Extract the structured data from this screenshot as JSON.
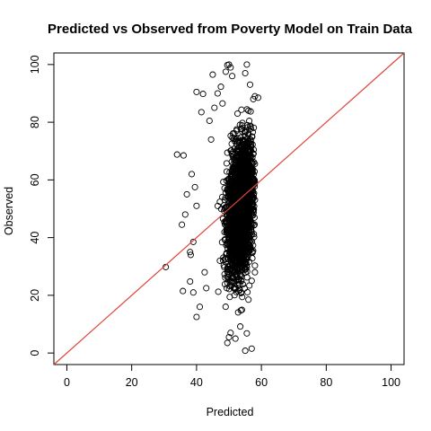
{
  "chart_data": {
    "type": "scatter",
    "title": "Predicted vs Observed from Poverty Model on Train Data",
    "xlabel": "Predicted",
    "ylabel": "Observed",
    "xlim": [
      -4,
      104
    ],
    "ylim": [
      -4,
      104
    ],
    "xticks": [
      0,
      20,
      40,
      60,
      80,
      100
    ],
    "yticks": [
      0,
      20,
      40,
      60,
      80,
      100
    ],
    "xtick_labels": [
      "0",
      "20",
      "40",
      "60",
      "80",
      "100"
    ],
    "ytick_labels": [
      "0",
      "20",
      "40",
      "60",
      "80",
      "100"
    ],
    "grid": false,
    "point_color": "#000000",
    "reference_line": {
      "type": "y=x",
      "from": [
        -4,
        -4
      ],
      "to": [
        104,
        104
      ],
      "color": "#e0443a"
    },
    "series": [
      {
        "marker": "open-circle",
        "n_points_approx": 3000,
        "cloud": {
          "x_range": [
            44,
            58
          ],
          "x_center": 53.5,
          "y_range": [
            14,
            86
          ],
          "y_center": 50
        },
        "points": [
          [
            30.5,
            29.8
          ],
          [
            34.0,
            68.8
          ],
          [
            35.5,
            44.5
          ],
          [
            35.8,
            21.5
          ],
          [
            36.0,
            68.5
          ],
          [
            36.5,
            48.0
          ],
          [
            37.0,
            55.0
          ],
          [
            38.0,
            24.8
          ],
          [
            38.0,
            35.0
          ],
          [
            38.2,
            34.0
          ],
          [
            38.5,
            62.0
          ],
          [
            39.0,
            21.0
          ],
          [
            39.0,
            38.5
          ],
          [
            39.5,
            57.5
          ],
          [
            40.0,
            12.5
          ],
          [
            40.0,
            51.0
          ],
          [
            40.0,
            90.5
          ],
          [
            41.0,
            16.0
          ],
          [
            41.5,
            83.5
          ],
          [
            42.0,
            89.8
          ],
          [
            42.5,
            28.0
          ],
          [
            43.0,
            22.5
          ],
          [
            44.0,
            80.5
          ],
          [
            44.5,
            74.0
          ],
          [
            45.0,
            96.5
          ],
          [
            45.5,
            85.0
          ],
          [
            46.5,
            90.0
          ],
          [
            47.5,
            92.3
          ],
          [
            48.0,
            86.5
          ],
          [
            49.0,
            97.5
          ],
          [
            49.5,
            99.8
          ],
          [
            50.0,
            100.0
          ],
          [
            50.5,
            99.0
          ],
          [
            51.0,
            96.0
          ],
          [
            50.0,
            5.5
          ],
          [
            50.5,
            7.0
          ],
          [
            49.5,
            3.5
          ],
          [
            52.0,
            5.0
          ],
          [
            55.0,
            0.8
          ],
          [
            57.0,
            1.5
          ],
          [
            55.5,
            6.8
          ],
          [
            53.5,
            9.2
          ],
          [
            54.0,
            15.0
          ],
          [
            56.0,
            18.5
          ],
          [
            57.0,
            25.0
          ],
          [
            58.0,
            28.0
          ],
          [
            55.0,
            97.0
          ],
          [
            55.5,
            100.0
          ],
          [
            56.5,
            93.0
          ],
          [
            58.0,
            89.0
          ],
          [
            57.5,
            88.0
          ],
          [
            59.0,
            88.5
          ],
          [
            56.0,
            84.0
          ]
        ]
      }
    ]
  }
}
